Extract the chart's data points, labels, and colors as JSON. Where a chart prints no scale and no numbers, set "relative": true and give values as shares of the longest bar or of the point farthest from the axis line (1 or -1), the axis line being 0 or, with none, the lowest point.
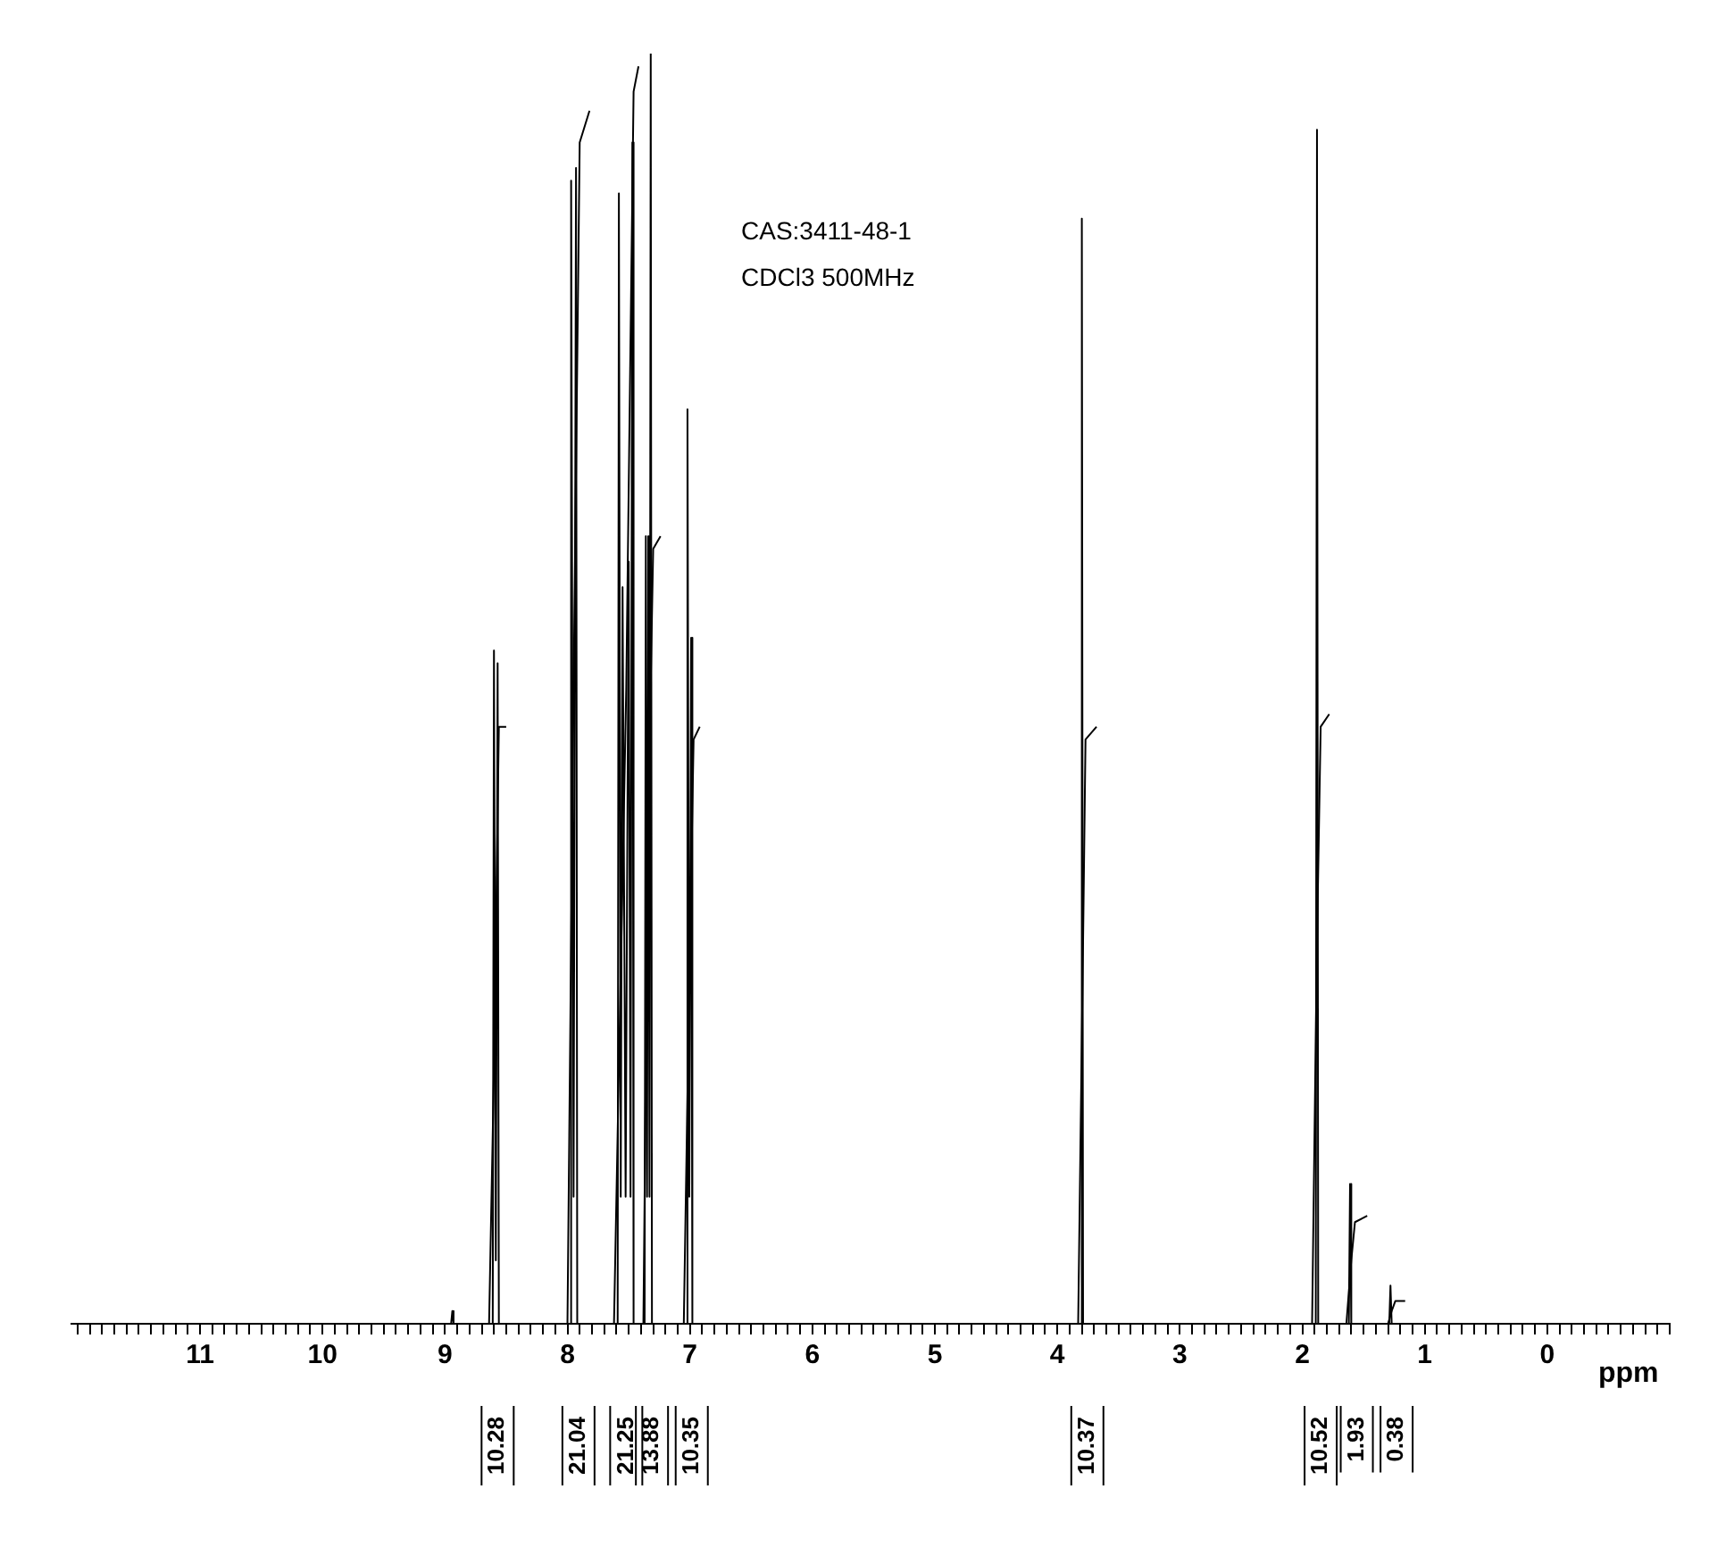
{
  "chart_data": {
    "type": "line",
    "relative": true,
    "xlabel": "ppm",
    "legend": false,
    "grid": false,
    "marker": "none",
    "line_style": "solid",
    "xlim": [
      12.05,
      -1
    ],
    "xticks": [
      {
        "value": 12,
        "label": null
      },
      {
        "value": 11.9,
        "label": null
      },
      {
        "value": 11.8,
        "label": null
      },
      {
        "value": 11.7,
        "label": null
      },
      {
        "value": 11.6,
        "label": null
      },
      {
        "value": 11.5,
        "label": null
      },
      {
        "value": 11.4,
        "label": null
      },
      {
        "value": 11.3,
        "label": null
      },
      {
        "value": 11.2,
        "label": null
      },
      {
        "value": 11.1,
        "label": null
      },
      11,
      {
        "value": 10.9,
        "label": null
      },
      {
        "value": 10.8,
        "label": null
      },
      {
        "value": 10.7,
        "label": null
      },
      {
        "value": 10.6,
        "label": null
      },
      {
        "value": 10.5,
        "label": null
      },
      {
        "value": 10.4,
        "label": null
      },
      {
        "value": 10.3,
        "label": null
      },
      {
        "value": 10.2,
        "label": null
      },
      {
        "value": 10.1,
        "label": null
      },
      10,
      {
        "value": 9.9,
        "label": null
      },
      {
        "value": 9.8,
        "label": null
      },
      {
        "value": 9.7,
        "label": null
      },
      {
        "value": 9.6,
        "label": null
      },
      {
        "value": 9.5,
        "label": null
      },
      {
        "value": 9.4,
        "label": null
      },
      {
        "value": 9.3,
        "label": null
      },
      {
        "value": 9.2,
        "label": null
      },
      {
        "value": 9.1,
        "label": null
      },
      9,
      {
        "value": 8.9,
        "label": null
      },
      {
        "value": 8.8,
        "label": null
      },
      {
        "value": 8.7,
        "label": null
      },
      {
        "value": 8.6,
        "label": null
      },
      {
        "value": 8.5,
        "label": null
      },
      {
        "value": 8.4,
        "label": null
      },
      {
        "value": 8.3,
        "label": null
      },
      {
        "value": 8.2,
        "label": null
      },
      {
        "value": 8.1,
        "label": null
      },
      8,
      {
        "value": 7.9,
        "label": null
      },
      {
        "value": 7.8,
        "label": null
      },
      {
        "value": 7.7,
        "label": null
      },
      {
        "value": 7.6,
        "label": null
      },
      {
        "value": 7.5,
        "label": null
      },
      {
        "value": 7.4,
        "label": null
      },
      {
        "value": 7.3,
        "label": null
      },
      {
        "value": 7.2,
        "label": null
      },
      {
        "value": 7.1,
        "label": null
      },
      7,
      {
        "value": 6.9,
        "label": null
      },
      {
        "value": 6.8,
        "label": null
      },
      {
        "value": 6.7,
        "label": null
      },
      {
        "value": 6.6,
        "label": null
      },
      {
        "value": 6.5,
        "label": null
      },
      {
        "value": 6.4,
        "label": null
      },
      {
        "value": 6.3,
        "label": null
      },
      {
        "value": 6.2,
        "label": null
      },
      {
        "value": 6.1,
        "label": null
      },
      6,
      {
        "value": 5.9,
        "label": null
      },
      {
        "value": 5.8,
        "label": null
      },
      {
        "value": 5.7,
        "label": null
      },
      {
        "value": 5.6,
        "label": null
      },
      {
        "value": 5.5,
        "label": null
      },
      {
        "value": 5.4,
        "label": null
      },
      {
        "value": 5.3,
        "label": null
      },
      {
        "value": 5.2,
        "label": null
      },
      {
        "value": 5.1,
        "label": null
      },
      5,
      {
        "value": 4.9,
        "label": null
      },
      {
        "value": 4.8,
        "label": null
      },
      {
        "value": 4.7,
        "label": null
      },
      {
        "value": 4.6,
        "label": null
      },
      {
        "value": 4.5,
        "label": null
      },
      {
        "value": 4.4,
        "label": null
      },
      {
        "value": 4.3,
        "label": null
      },
      {
        "value": 4.2,
        "label": null
      },
      {
        "value": 4.1,
        "label": null
      },
      4,
      {
        "value": 3.9,
        "label": null
      },
      {
        "value": 3.8,
        "label": null
      },
      {
        "value": 3.7,
        "label": null
      },
      {
        "value": 3.6,
        "label": null
      },
      {
        "value": 3.5,
        "label": null
      },
      {
        "value": 3.4,
        "label": null
      },
      {
        "value": 3.3,
        "label": null
      },
      {
        "value": 3.2,
        "label": null
      },
      {
        "value": 3.1,
        "label": null
      },
      3,
      {
        "value": 2.9,
        "label": null
      },
      {
        "value": 2.8,
        "label": null
      },
      {
        "value": 2.7,
        "label": null
      },
      {
        "value": 2.6,
        "label": null
      },
      {
        "value": 2.5,
        "label": null
      },
      {
        "value": 2.4,
        "label": null
      },
      {
        "value": 2.3,
        "label": null
      },
      {
        "value": 2.2,
        "label": null
      },
      {
        "value": 2.1,
        "label": null
      },
      2,
      {
        "value": 1.9,
        "label": null
      },
      {
        "value": 1.8,
        "label": null
      },
      {
        "value": 1.7,
        "label": null
      },
      {
        "value": 1.6,
        "label": null
      },
      {
        "value": 1.5,
        "label": null
      },
      {
        "value": 1.4,
        "label": null
      },
      {
        "value": 1.3,
        "label": null
      },
      {
        "value": 1.2,
        "label": null
      },
      {
        "value": 1.1,
        "label": null
      },
      1,
      {
        "value": 0.9,
        "label": null
      },
      {
        "value": 0.8,
        "label": null
      },
      {
        "value": 0.7,
        "label": null
      },
      {
        "value": 0.6,
        "label": null
      },
      {
        "value": 0.5,
        "label": null
      },
      {
        "value": 0.4,
        "label": null
      },
      {
        "value": 0.3,
        "label": null
      },
      {
        "value": 0.2,
        "label": null
      },
      {
        "value": 0.1,
        "label": null
      },
      0,
      {
        "value": -0.1,
        "label": null
      },
      {
        "value": -0.2,
        "label": null
      },
      {
        "value": -0.3,
        "label": null
      },
      {
        "value": -0.4,
        "label": null
      },
      {
        "value": -0.5,
        "label": null
      },
      {
        "value": -0.6,
        "label": null
      },
      {
        "value": -0.7,
        "label": null
      },
      {
        "value": -0.8,
        "label": null
      },
      {
        "value": -0.9,
        "label": null
      },
      {
        "value": -1,
        "label": null
      }
    ],
    "series": [
      {
        "color": "#000000",
        "x": [
          12.05,
          8.95,
          8.94,
          8.93,
          8.61,
          8.6,
          8.585,
          8.57,
          8.56,
          8.1,
          7.98,
          7.97,
          7.95,
          7.93,
          7.92,
          7.59,
          7.58,
          7.565,
          7.55,
          7.525,
          7.5,
          7.485,
          7.47,
          7.46,
          7.37,
          7.36,
          7.35,
          7.34,
          7.33,
          7.32,
          7.31,
          7.03,
          7.02,
          7.005,
          6.99,
          6.98,
          3.81,
          3.8,
          3.79,
          1.89,
          1.88,
          1.87,
          1.62,
          1.61,
          1.6,
          1.29,
          1.28,
          1.27,
          -1
        ],
        "values": [
          0,
          0,
          0.01,
          0,
          0,
          0.53,
          0.05,
          0.52,
          0,
          0,
          0,
          0.9,
          0.1,
          0.91,
          0,
          0,
          0.89,
          0.1,
          0.58,
          0.1,
          0.6,
          0.1,
          0.93,
          0,
          0,
          0.62,
          0.1,
          0.62,
          0.1,
          1,
          0,
          0,
          0.72,
          0.1,
          0.54,
          0,
          0,
          0.87,
          0,
          0,
          0.94,
          0,
          0,
          0.11,
          0,
          0,
          0.03,
          0,
          0
        ]
      },
      {
        "color": "#000000",
        "x": [
          8.64,
          8.6,
          8.56,
          8.5,
          8.2,
          8.0,
          7.95,
          7.9,
          7.82,
          7.7,
          7.62,
          7.52,
          7.46,
          7.42,
          7.4,
          7.38,
          7.34,
          7.3,
          7.24,
          7.1,
          7.05,
          7.0,
          6.97,
          6.92,
          5,
          3.83,
          3.79,
          3.77,
          3.68,
          2.5,
          1.92,
          1.88,
          1.85,
          1.78,
          1.7,
          1.64,
          1.6,
          1.57,
          1.47,
          1.4,
          1.3,
          1.27,
          1.24,
          1.16
        ],
        "values": [
          0,
          0.2,
          0.47,
          0.47,
          null,
          0,
          0.5,
          0.93,
          0.955,
          null,
          0,
          0.5,
          0.97,
          0.99,
          null,
          0,
          0.4,
          0.61,
          0.62,
          null,
          0,
          0.3,
          0.46,
          0.47,
          null,
          0,
          0.3,
          0.46,
          0.47,
          null,
          0,
          0.3,
          0.47,
          0.48,
          null,
          0,
          0.05,
          0.08,
          0.085,
          null,
          0,
          0.01,
          0.018,
          0.018
        ]
      }
    ],
    "annotations": [
      "CAS:3411-48-1",
      "CDCl3 500MHz",
      "10.28",
      "21.04",
      "21.25",
      "13.88",
      "10.35",
      "10.37",
      "10.52",
      "1.93",
      "0.38"
    ]
  }
}
